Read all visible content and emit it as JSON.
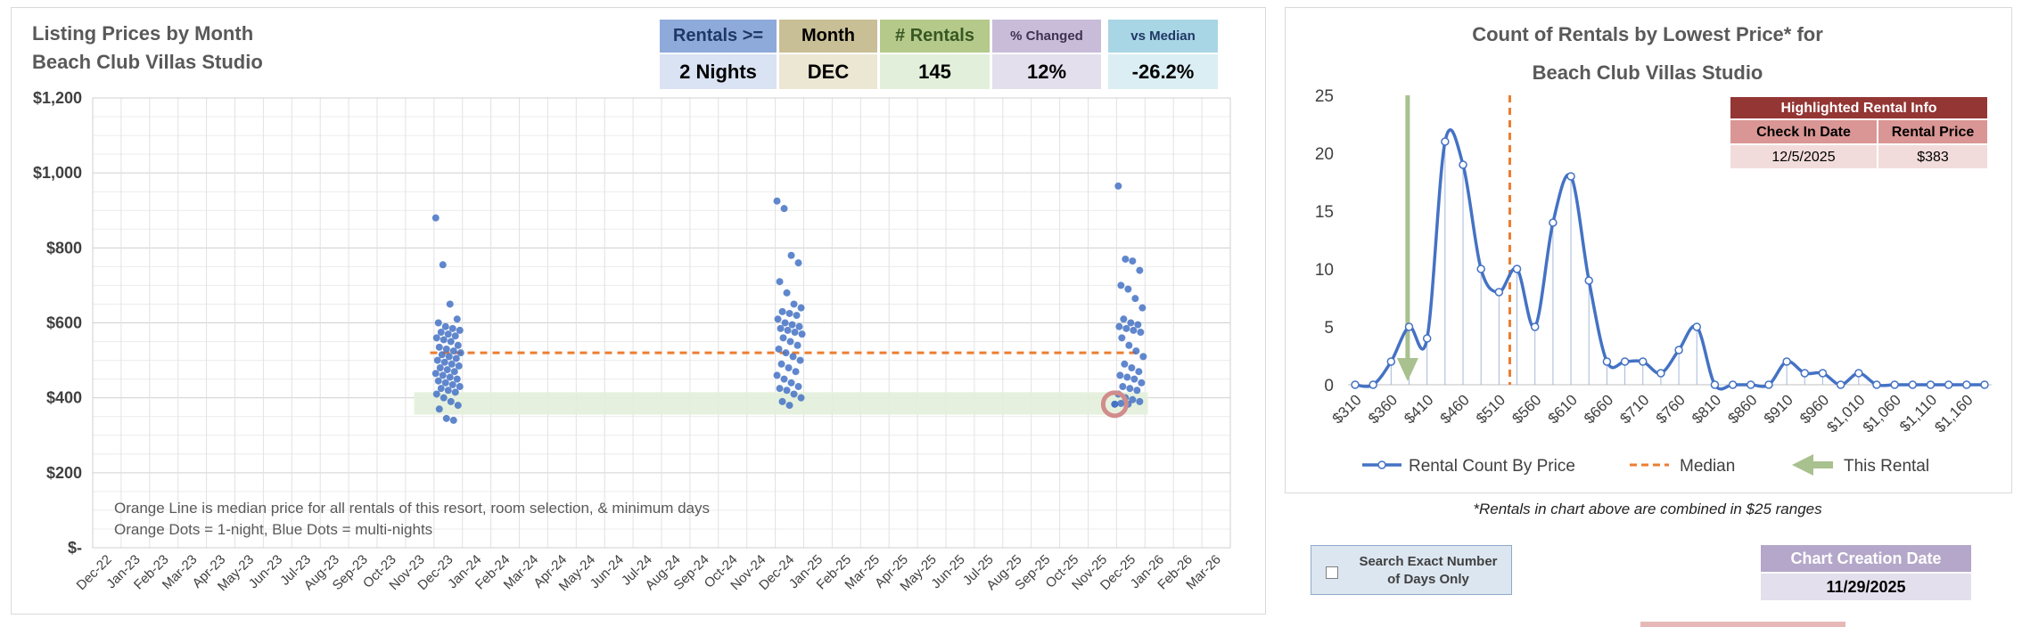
{
  "left_chart": {
    "title_line1": "Listing Prices by Month",
    "title_line2": "Beach Club Villas Studio",
    "note_line1": "Orange Line is median price for all rentals of this resort, room selection, & minimum days",
    "note_line2": "Orange Dots = 1-night, Blue Dots = multi-nights"
  },
  "stats": {
    "rentals_label": "Rentals >=",
    "rentals_value": "2 Nights",
    "month_label": "Month",
    "month_value": "DEC",
    "count_label": "# Rentals",
    "count_value": "145",
    "changed_label": "% Changed",
    "changed_value": "12%",
    "median_label": "vs Median",
    "median_value": "-26.2%"
  },
  "right_chart": {
    "title_line1": "Count of Rentals by Lowest Price* for",
    "title_line2": "Beach Club Villas Studio",
    "legend_count": "Rental Count By Price",
    "legend_median": "Median",
    "legend_this": "This Rental"
  },
  "highlight": {
    "title": "Highlighted Rental Info",
    "col1": "Check In Date",
    "col2": "Rental Price",
    "date": "12/5/2025",
    "price": "$383"
  },
  "footnote": "*Rentals in chart above are combined in $25 ranges",
  "search": {
    "label": "Search Exact Number of Days Only"
  },
  "creation": {
    "label": "Chart Creation Date",
    "date": "11/29/2025"
  },
  "colors": {
    "blue": "#4472c4",
    "orange": "#ed7d31",
    "green_arrow": "#a9c08f",
    "band": "#e2efda",
    "circle": "#d18c8c"
  },
  "chart_data": [
    {
      "type": "scatter",
      "title": "Listing Prices by Month",
      "xlabel": "",
      "ylabel": "",
      "x_ticks": [
        "Dec-22",
        "Jan-23",
        "Feb-23",
        "Mar-23",
        "Apr-23",
        "May-23",
        "Jun-23",
        "Jul-23",
        "Aug-23",
        "Sep-23",
        "Oct-23",
        "Nov-23",
        "Dec-23",
        "Jan-24",
        "Feb-24",
        "Mar-24",
        "Apr-24",
        "May-24",
        "Jun-24",
        "Jul-24",
        "Aug-24",
        "Sep-24",
        "Oct-24",
        "Nov-24",
        "Dec-24",
        "Jan-25",
        "Feb-25",
        "Mar-25",
        "Apr-25",
        "May-25",
        "Jun-25",
        "Jul-25",
        "Aug-25",
        "Sep-25",
        "Oct-25",
        "Nov-25",
        "Dec-25",
        "Jan-26",
        "Feb-26",
        "Mar-26"
      ],
      "y_ticks": [
        "$-",
        "$200",
        "$400",
        "$600",
        "$800",
        "$1,000",
        "$1,200"
      ],
      "ylim": [
        0,
        1200
      ],
      "grid": true,
      "median_price": 520,
      "highlight_band": [
        355,
        415
      ],
      "highlighted_point": {
        "x": "Dec-25",
        "y": 383
      },
      "series": [
        {
          "name": "Dec-23 listings",
          "x": "Dec-23",
          "values": [
            880,
            755,
            650,
            610,
            600,
            590,
            585,
            580,
            575,
            570,
            565,
            560,
            555,
            550,
            540,
            535,
            530,
            525,
            520,
            515,
            510,
            505,
            500,
            495,
            490,
            485,
            480,
            475,
            470,
            465,
            460,
            455,
            450,
            445,
            440,
            435,
            430,
            425,
            420,
            415,
            410,
            400,
            390,
            380,
            370,
            345,
            340
          ]
        },
        {
          "name": "Dec-24 listings",
          "x": "Dec-24",
          "values": [
            925,
            905,
            780,
            760,
            710,
            680,
            650,
            640,
            630,
            625,
            620,
            610,
            600,
            595,
            590,
            585,
            580,
            575,
            570,
            560,
            550,
            540,
            530,
            520,
            510,
            500,
            490,
            480,
            470,
            460,
            450,
            440,
            430,
            425,
            420,
            410,
            400,
            390,
            380
          ]
        },
        {
          "name": "Dec-25 listings",
          "x": "Dec-25",
          "values": [
            965,
            770,
            765,
            740,
            700,
            690,
            665,
            640,
            610,
            600,
            595,
            590,
            585,
            580,
            575,
            560,
            540,
            525,
            510,
            490,
            480,
            470,
            460,
            455,
            450,
            440,
            430,
            425,
            420,
            410,
            400,
            395,
            390,
            385,
            383
          ]
        }
      ]
    },
    {
      "type": "line",
      "title": "Count of Rentals by Lowest Price* for Beach Club Villas Studio",
      "x_ticks": [
        "$310",
        "$360",
        "$410",
        "$460",
        "$510",
        "$560",
        "$610",
        "$660",
        "$710",
        "$760",
        "$810",
        "$860",
        "$910",
        "$960",
        "$1,010",
        "$1,060",
        "$1,110",
        "$1,160"
      ],
      "ylim": [
        0,
        25
      ],
      "y_ticks": [
        0,
        5,
        10,
        15,
        20,
        25
      ],
      "median": 525,
      "this_rental": 383,
      "series": [
        {
          "name": "Rental Count By Price",
          "x": [
            310,
            335,
            360,
            385,
            410,
            435,
            460,
            485,
            510,
            535,
            560,
            585,
            610,
            635,
            660,
            685,
            710,
            735,
            760,
            785,
            810,
            835,
            860,
            885,
            910,
            935,
            960,
            985,
            1010,
            1035,
            1060,
            1085,
            1110,
            1135,
            1160,
            1185
          ],
          "values": [
            0,
            0,
            2,
            5,
            4,
            21,
            19,
            10,
            8,
            10,
            5,
            14,
            18,
            9,
            2,
            2,
            2,
            1,
            3,
            5,
            0,
            0,
            0,
            0,
            2,
            1,
            1,
            0,
            1,
            0,
            0,
            0,
            0,
            0,
            0,
            0
          ]
        }
      ]
    }
  ]
}
